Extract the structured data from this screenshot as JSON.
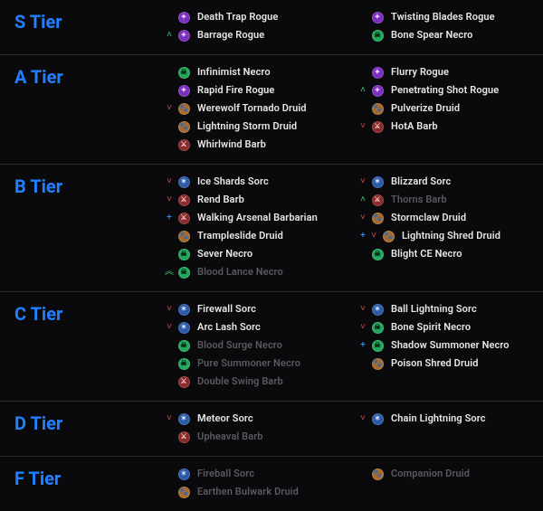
{
  "colors": {
    "tier_label": "#2080ff",
    "text": "#e8e8e8",
    "dim_text": "#5a5a60",
    "classes": {
      "rogue": {
        "bg": "#7b2fbf",
        "fg": "#e8d0ff",
        "glyph": "✦"
      },
      "necro": {
        "bg": "#1fa85a",
        "fg": "#061a0e",
        "glyph": "☠"
      },
      "druid": {
        "bg": "#a86a2a",
        "fg": "#f3e6d2",
        "glyph": "🐾"
      },
      "barb": {
        "bg": "#8a2a2a",
        "fg": "#f3d2d2",
        "glyph": "⚔"
      },
      "sorc": {
        "bg": "#2a5aa8",
        "fg": "#d2e0f3",
        "glyph": "✶"
      }
    },
    "moves": {
      "up": {
        "glyph": "˄",
        "color": "#3cd07a"
      },
      "up2": {
        "glyph": "︽",
        "color": "#3cd07a"
      },
      "down": {
        "glyph": "˅",
        "color": "#d04a4a"
      },
      "new": {
        "glyph": "+",
        "color": "#3aa0ff"
      }
    }
  },
  "tiers": [
    {
      "label": "S Tier",
      "builds": [
        {
          "name": "Death Trap Rogue",
          "class": "rogue",
          "move": null,
          "col": 0,
          "dim": false
        },
        {
          "name": "Twisting Blades Rogue",
          "class": "rogue",
          "move": null,
          "col": 1,
          "dim": false
        },
        {
          "name": "Barrage Rogue",
          "class": "rogue",
          "move": "up",
          "col": 0,
          "dim": false
        },
        {
          "name": "Bone Spear Necro",
          "class": "necro",
          "move": null,
          "col": 1,
          "dim": false
        }
      ]
    },
    {
      "label": "A Tier",
      "builds": [
        {
          "name": "Infinimist Necro",
          "class": "necro",
          "move": null,
          "col": 0,
          "dim": false
        },
        {
          "name": "Flurry Rogue",
          "class": "rogue",
          "move": null,
          "col": 1,
          "dim": false
        },
        {
          "name": "Rapid Fire Rogue",
          "class": "rogue",
          "move": null,
          "col": 0,
          "dim": false
        },
        {
          "name": "Penetrating Shot Rogue",
          "class": "rogue",
          "move": "up",
          "col": 1,
          "dim": false
        },
        {
          "name": "Werewolf Tornado Druid",
          "class": "druid",
          "move": "down",
          "col": 0,
          "dim": false
        },
        {
          "name": "Pulverize Druid",
          "class": "druid",
          "move": null,
          "col": 1,
          "dim": false
        },
        {
          "name": "Lightning Storm Druid",
          "class": "druid",
          "move": null,
          "col": 0,
          "dim": false
        },
        {
          "name": "HotA Barb",
          "class": "barb",
          "move": "down",
          "col": 1,
          "dim": false
        },
        {
          "name": "Whirlwind Barb",
          "class": "barb",
          "move": null,
          "col": 0,
          "dim": false
        }
      ]
    },
    {
      "label": "B Tier",
      "builds": [
        {
          "name": "Ice Shards Sorc",
          "class": "sorc",
          "move": "down",
          "col": 0,
          "dim": false
        },
        {
          "name": "Blizzard Sorc",
          "class": "sorc",
          "move": "down",
          "col": 1,
          "dim": false
        },
        {
          "name": "Rend Barb",
          "class": "barb",
          "move": "down",
          "col": 0,
          "dim": false
        },
        {
          "name": "Thorns Barb",
          "class": "barb",
          "move": "up",
          "col": 1,
          "dim": true
        },
        {
          "name": "Walking Arsenal Barbarian",
          "class": "barb",
          "move": "new",
          "col": 0,
          "dim": false
        },
        {
          "name": "Stormclaw Druid",
          "class": "druid",
          "move": "down",
          "col": 1,
          "dim": false
        },
        {
          "name": "Trampleslide Druid",
          "class": "druid",
          "move": null,
          "col": 0,
          "dim": false
        },
        {
          "name": "Lightning Shred Druid",
          "class": "druid",
          "move": "new",
          "col": 1,
          "dim": false,
          "move2": "down"
        },
        {
          "name": "Sever Necro",
          "class": "necro",
          "move": null,
          "col": 0,
          "dim": false
        },
        {
          "name": "Blight CE Necro",
          "class": "necro",
          "move": null,
          "col": 1,
          "dim": false
        },
        {
          "name": "Blood Lance Necro",
          "class": "necro",
          "move": "up2",
          "col": 0,
          "dim": true
        }
      ]
    },
    {
      "label": "C Tier",
      "builds": [
        {
          "name": "Firewall Sorc",
          "class": "sorc",
          "move": "down",
          "col": 0,
          "dim": false
        },
        {
          "name": "Ball Lightning Sorc",
          "class": "sorc",
          "move": "down",
          "col": 1,
          "dim": false
        },
        {
          "name": "Arc Lash Sorc",
          "class": "sorc",
          "move": "down",
          "col": 0,
          "dim": false
        },
        {
          "name": "Bone Spirit Necro",
          "class": "necro",
          "move": "down",
          "col": 1,
          "dim": false
        },
        {
          "name": "Blood Surge Necro",
          "class": "necro",
          "move": null,
          "col": 0,
          "dim": true
        },
        {
          "name": "Shadow Summoner Necro",
          "class": "necro",
          "move": "new",
          "col": 1,
          "dim": false
        },
        {
          "name": "Pure Summoner Necro",
          "class": "necro",
          "move": null,
          "col": 0,
          "dim": true
        },
        {
          "name": "Poison Shred Druid",
          "class": "druid",
          "move": null,
          "col": 1,
          "dim": false
        },
        {
          "name": "Double Swing Barb",
          "class": "barb",
          "move": null,
          "col": 0,
          "dim": true
        }
      ]
    },
    {
      "label": "D Tier",
      "builds": [
        {
          "name": "Meteor Sorc",
          "class": "sorc",
          "move": "down",
          "col": 0,
          "dim": false
        },
        {
          "name": "Chain Lightning Sorc",
          "class": "sorc",
          "move": "down",
          "col": 1,
          "dim": false
        },
        {
          "name": "Upheaval Barb",
          "class": "barb",
          "move": null,
          "col": 0,
          "dim": true
        }
      ]
    },
    {
      "label": "F Tier",
      "builds": [
        {
          "name": "Fireball Sorc",
          "class": "sorc",
          "move": null,
          "col": 0,
          "dim": true
        },
        {
          "name": "Companion Druid",
          "class": "druid",
          "move": null,
          "col": 1,
          "dim": true
        },
        {
          "name": "Earthen Bulwark Druid",
          "class": "druid",
          "move": null,
          "col": 0,
          "dim": true
        }
      ]
    }
  ]
}
